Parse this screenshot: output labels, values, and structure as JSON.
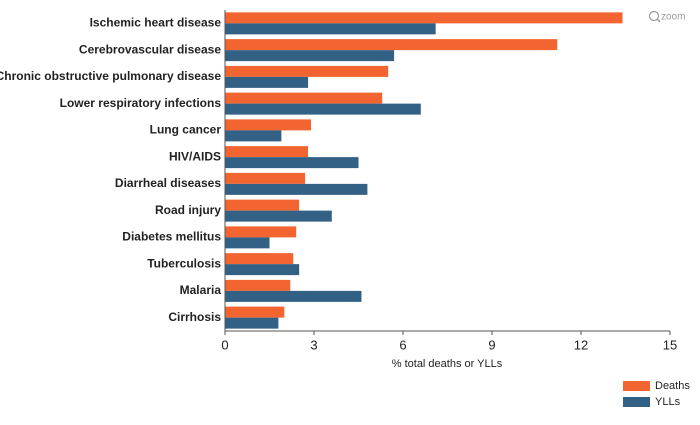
{
  "chart_data": {
    "type": "barh",
    "x_label": "% total deaths or YLLs",
    "categories": [
      "Ischemic heart disease",
      "Cerebrovascular disease",
      "Chronic obstructive pulmonary disease",
      "Lower respiratory infections",
      "Lung cancer",
      "HIV/AIDS",
      "Diarrheal diseases",
      "Road injury",
      "Diabetes mellitus",
      "Tuberculosis",
      "Malaria",
      "Cirrhosis"
    ],
    "series": [
      {
        "name": "Deaths",
        "color": "#f26430",
        "values": [
          13.4,
          11.2,
          5.5,
          5.3,
          2.9,
          2.8,
          2.7,
          2.5,
          2.4,
          2.3,
          2.2,
          2.0
        ]
      },
      {
        "name": "YLLs",
        "color": "#336185",
        "values": [
          7.1,
          5.7,
          2.8,
          6.6,
          1.9,
          4.5,
          4.8,
          3.6,
          1.5,
          2.5,
          4.6,
          1.8
        ]
      }
    ],
    "xlim": [
      0,
      15
    ],
    "xticks": [
      0,
      3,
      6,
      9,
      12,
      15
    ],
    "grid": false,
    "legend": "bottom-right"
  },
  "zoom": "zoom"
}
